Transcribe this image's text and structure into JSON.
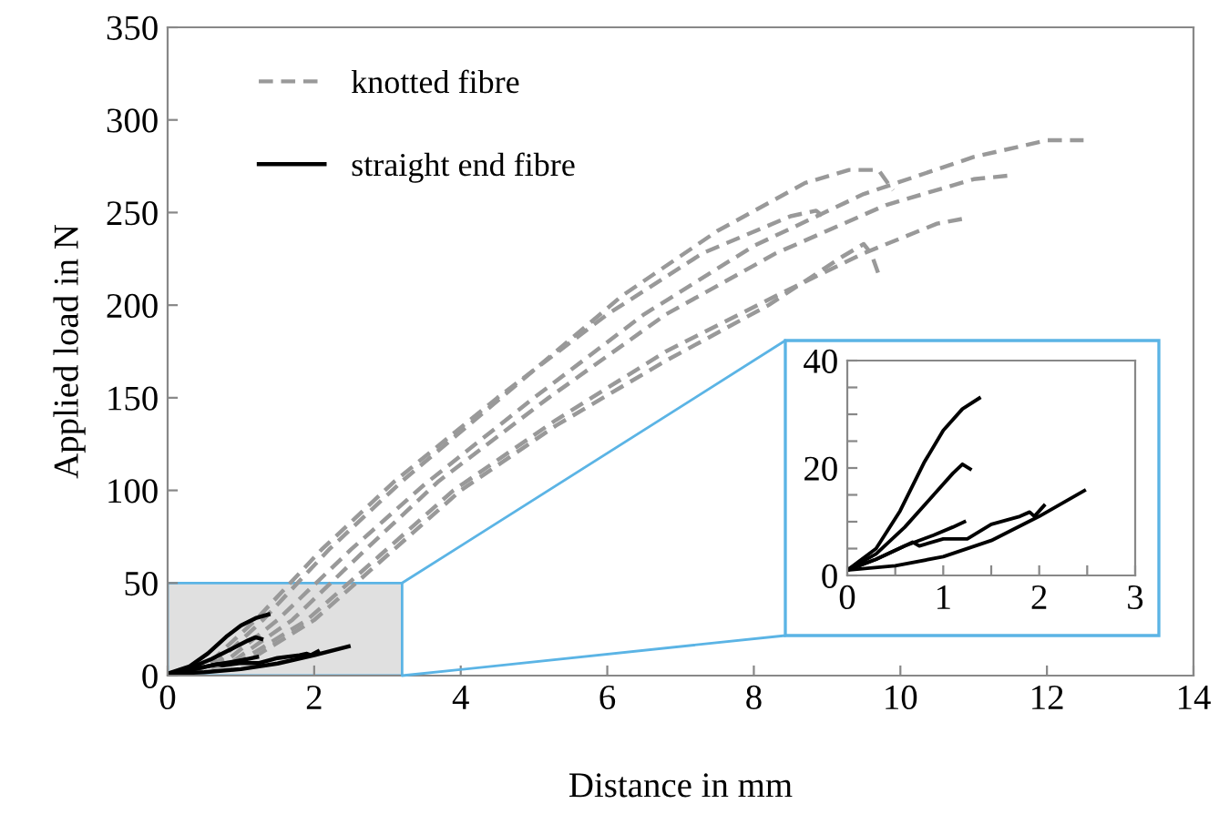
{
  "chart_data": [
    {
      "type": "line",
      "xlabel": "Distance in mm",
      "ylabel": "Applied load in N",
      "xlim": [
        0,
        14
      ],
      "xticks": [
        0,
        2,
        4,
        6,
        8,
        10,
        12,
        14
      ],
      "ylim": [
        0,
        350
      ],
      "yticks": [
        0,
        50,
        100,
        150,
        200,
        250,
        300,
        350
      ],
      "grid": false,
      "legend": "top left",
      "bands": [
        {
          "axis": "x",
          "from": 0,
          "to": 3.2,
          "color": "#e0e0e0"
        }
      ],
      "series": [
        {
          "name": "knotted fibre",
          "color": "#999999",
          "line_style": "dashed",
          "x": [
            0,
            0.8,
            1.5,
            2.5,
            3.5,
            5,
            6.5,
            8,
            9.5,
            11,
            12,
            12.5
          ],
          "values": [
            0,
            8,
            30,
            68,
            103,
            150,
            195,
            232,
            260,
            280,
            289,
            289
          ]
        },
        {
          "color": "#999999",
          "line_style": "dashed",
          "x": [
            0,
            0.7,
            1.3,
            2.2,
            3.2,
            4.7,
            6.2,
            7.5,
            8.7,
            9.3,
            9.7,
            9.9
          ],
          "values": [
            0,
            8,
            30,
            68,
            105,
            155,
            205,
            240,
            266,
            273,
            273,
            262
          ]
        },
        {
          "color": "#999999",
          "line_style": "dashed",
          "x": [
            0,
            0.9,
            1.7,
            2.7,
            3.7,
            5.2,
            6.8,
            8.3,
            9.8,
            11,
            11.5
          ],
          "values": [
            0,
            8,
            30,
            68,
            105,
            150,
            195,
            228,
            254,
            268,
            270
          ]
        },
        {
          "color": "#999999",
          "line_style": "dashed",
          "x": [
            0,
            0.6,
            1.2,
            2.1,
            3.1,
            4.5,
            6,
            7.3,
            8.5,
            8.85,
            9
          ],
          "values": [
            0,
            8,
            30,
            68,
            105,
            150,
            195,
            228,
            248,
            251,
            246
          ]
        },
        {
          "color": "#999999",
          "line_style": "dashed",
          "x": [
            0,
            1,
            1.9,
            2.9,
            3.9,
            5.3,
            6.8,
            8.3,
            9.5,
            10.5,
            10.9
          ],
          "values": [
            0,
            8,
            30,
            65,
            100,
            138,
            175,
            205,
            228,
            244,
            247
          ]
        },
        {
          "color": "#999999",
          "line_style": "dashed",
          "x": [
            0,
            1.1,
            2,
            3,
            4,
            5.3,
            6.8,
            8.2,
            9.2,
            9.5,
            9.6,
            9.7
          ],
          "values": [
            0,
            8,
            30,
            65,
            100,
            135,
            170,
            200,
            226,
            233,
            228,
            217
          ]
        },
        {
          "name": "straight end fibre",
          "color": "#000000",
          "line_style": "solid",
          "x": [
            0,
            0.3,
            0.55,
            0.8,
            1.0,
            1.2,
            1.375
          ],
          "values": [
            1,
            5,
            12,
            21,
            27,
            31,
            33
          ]
        },
        {
          "color": "#000000",
          "line_style": "solid",
          "x": [
            0,
            0.3,
            0.6,
            0.9,
            1.1,
            1.2,
            1.28
          ],
          "values": [
            1,
            4,
            9,
            15,
            19,
            20.7,
            19.8
          ]
        },
        {
          "color": "#000000",
          "line_style": "solid",
          "x": [
            0,
            0.3,
            0.6,
            0.9,
            1.1,
            1.22
          ],
          "values": [
            1,
            3,
            5.5,
            7.5,
            9,
            10
          ]
        },
        {
          "color": "#000000",
          "line_style": "solid",
          "x": [
            0,
            0.3,
            0.6,
            0.68,
            0.75,
            1.0,
            1.25,
            1.5,
            1.8,
            1.9,
            1.95,
            2.05
          ],
          "values": [
            1,
            3,
            5.5,
            6.2,
            5.5,
            6.8,
            6.8,
            9.5,
            11,
            11.8,
            11,
            13
          ]
        },
        {
          "color": "#000000",
          "line_style": "solid",
          "x": [
            0,
            0.5,
            1.0,
            1.5,
            2.0,
            2.47
          ],
          "values": [
            1,
            1.8,
            3.5,
            6.5,
            11,
            15.8
          ]
        }
      ]
    },
    {
      "type": "line",
      "xlim": [
        0,
        3
      ],
      "xticks": [
        0,
        {
          "value": 0.5,
          "label": null
        },
        1,
        {
          "value": 1.5,
          "label": null
        },
        2,
        {
          "value": 2.5,
          "label": null
        },
        3
      ],
      "ylim": [
        0,
        40
      ],
      "yticks": [
        0,
        {
          "value": 5,
          "label": null
        },
        {
          "value": 10,
          "label": null
        },
        {
          "value": 15,
          "label": null
        },
        20,
        {
          "value": 25,
          "label": null
        },
        {
          "value": 30,
          "label": null
        },
        {
          "value": 35,
          "label": null
        },
        40
      ],
      "grid": false,
      "series": [
        {
          "color": "#000000",
          "line_style": "solid",
          "x": [
            0,
            0.3,
            0.55,
            0.8,
            1.0,
            1.2,
            1.375
          ],
          "values": [
            1,
            5,
            12,
            21,
            27,
            31,
            33
          ]
        },
        {
          "color": "#000000",
          "line_style": "solid",
          "x": [
            0,
            0.3,
            0.6,
            0.9,
            1.1,
            1.2,
            1.28
          ],
          "values": [
            1,
            4,
            9,
            15,
            19,
            20.7,
            19.8
          ]
        },
        {
          "color": "#000000",
          "line_style": "solid",
          "x": [
            0,
            0.3,
            0.6,
            0.9,
            1.1,
            1.22
          ],
          "values": [
            1,
            3,
            5.5,
            7.5,
            9,
            10
          ]
        },
        {
          "color": "#000000",
          "line_style": "solid",
          "x": [
            0,
            0.3,
            0.6,
            0.68,
            0.75,
            1.0,
            1.25,
            1.5,
            1.8,
            1.9,
            1.95,
            2.05
          ],
          "values": [
            1,
            3,
            5.5,
            6.2,
            5.5,
            6.8,
            6.8,
            9.5,
            11,
            11.8,
            11,
            13
          ]
        },
        {
          "color": "#000000",
          "line_style": "solid",
          "x": [
            0,
            0.5,
            1.0,
            1.5,
            2.0,
            2.47
          ],
          "values": [
            1,
            1.8,
            3.5,
            6.5,
            11,
            15.8
          ]
        }
      ]
    }
  ]
}
